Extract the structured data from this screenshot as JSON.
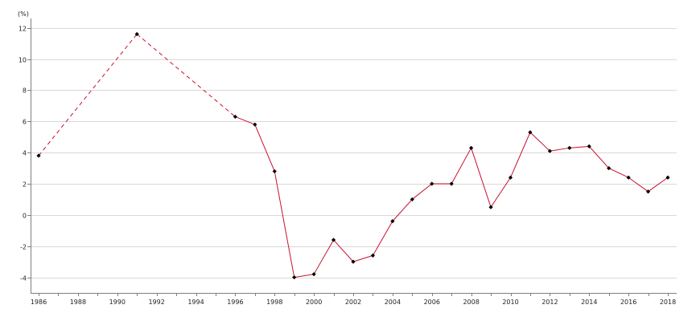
{
  "chart_data": {
    "type": "line",
    "unit_label": "(%)",
    "xlim": [
      1986,
      2018
    ],
    "ylim": [
      -5,
      12.5
    ],
    "y_ticks": [
      -4,
      -2,
      0,
      2,
      4,
      6,
      8,
      10,
      12
    ],
    "x_ticks": [
      1986,
      1988,
      1990,
      1992,
      1994,
      1996,
      1998,
      2000,
      2002,
      2004,
      2006,
      2008,
      2010,
      2012,
      2014,
      2016,
      2018
    ],
    "grid": "horizontal",
    "series": [
      {
        "color": "#c8102e",
        "points": [
          {
            "x": 1986,
            "y": 3.8
          },
          {
            "x": 1991,
            "y": 11.6
          },
          {
            "x": 1996,
            "y": 6.3
          },
          {
            "x": 1997,
            "y": 5.8
          },
          {
            "x": 1998,
            "y": 2.8
          },
          {
            "x": 1999,
            "y": -4.0
          },
          {
            "x": 2000,
            "y": -3.8
          },
          {
            "x": 2001,
            "y": -1.6
          },
          {
            "x": 2002,
            "y": -3.0
          },
          {
            "x": 2003,
            "y": -2.6
          },
          {
            "x": 2004,
            "y": -0.4
          },
          {
            "x": 2005,
            "y": 1.0
          },
          {
            "x": 2006,
            "y": 2.0
          },
          {
            "x": 2007,
            "y": 2.0
          },
          {
            "x": 2008,
            "y": 4.3
          },
          {
            "x": 2009,
            "y": 0.5
          },
          {
            "x": 2010,
            "y": 2.4
          },
          {
            "x": 2011,
            "y": 5.3
          },
          {
            "x": 2012,
            "y": 4.1
          },
          {
            "x": 2013,
            "y": 4.3
          },
          {
            "x": 2014,
            "y": 4.4
          },
          {
            "x": 2015,
            "y": 3.0
          },
          {
            "x": 2016,
            "y": 2.4
          },
          {
            "x": 2017,
            "y": 1.5
          },
          {
            "x": 2018,
            "y": 2.4
          }
        ],
        "dashed_segments": [
          [
            1986,
            1991
          ],
          [
            1991,
            1996
          ]
        ],
        "marker": "diamond",
        "marker_color": "#000000"
      }
    ]
  }
}
